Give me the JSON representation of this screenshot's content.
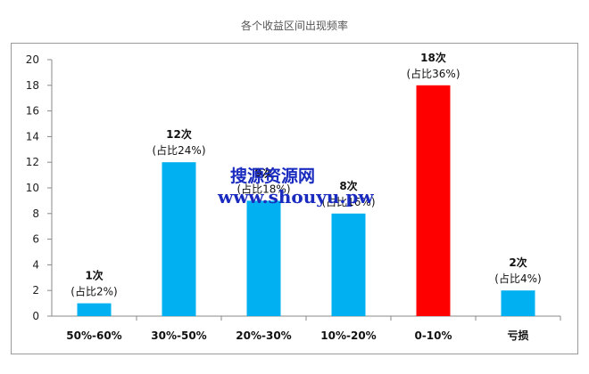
{
  "chart_data": {
    "type": "bar",
    "title": "各个收益区间出现频率",
    "categories": [
      "50%-60%",
      "30%-50%",
      "20%-30%",
      "10%-20%",
      "0-10%",
      "亏损"
    ],
    "values": [
      1,
      12,
      9,
      8,
      18,
      2
    ],
    "count_labels": [
      "1次",
      "12次",
      "9次",
      "8次",
      "18次",
      "2次"
    ],
    "share_labels": [
      "(占比2%)",
      "(占比24%)",
      "(占比18%)",
      "(占比16%)",
      "(占比36%)",
      "(占比4%)"
    ],
    "bar_colors": [
      "#00b0f0",
      "#00b0f0",
      "#00b0f0",
      "#00b0f0",
      "#ff0000",
      "#00b0f0"
    ],
    "ylim": [
      0,
      20
    ],
    "yticks": [
      0,
      2,
      4,
      6,
      8,
      10,
      12,
      14,
      16,
      18,
      20
    ],
    "grid": false,
    "legend": "none"
  },
  "watermark": {
    "line1": "搜源资源网",
    "line2": "www.shouyu.pw",
    "color": "#1a2bbf"
  }
}
